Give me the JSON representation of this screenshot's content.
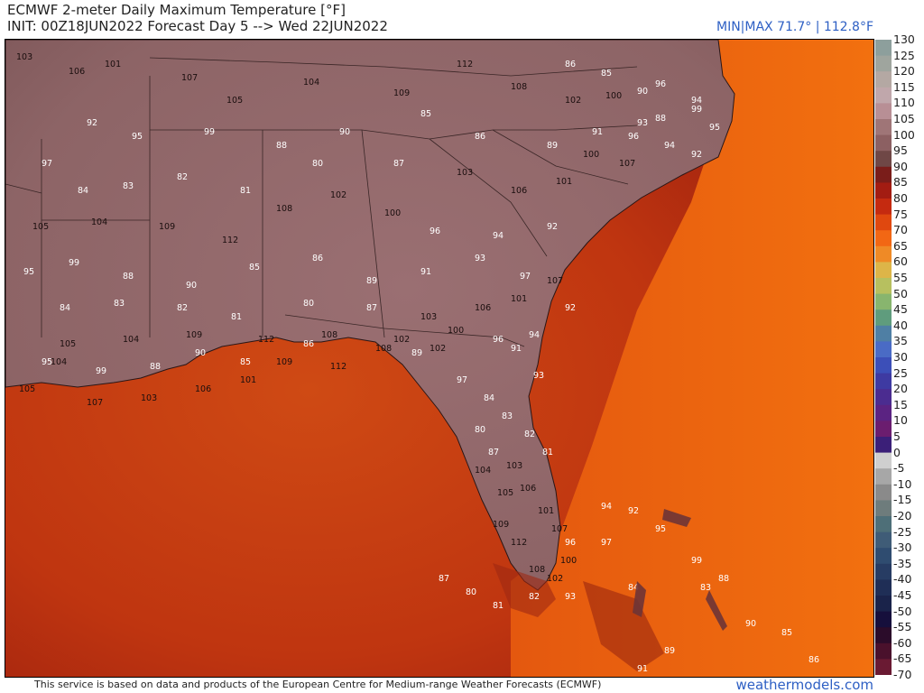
{
  "header": {
    "title": "ECMWF 2-meter Daily Maximum Temperature [°F]",
    "init_line": "INIT: 00Z18JUN2022 Forecast Day 5 --> Wed 22JUN2022",
    "minmax": "MIN|MAX 71.7° | 112.8°F"
  },
  "footer": {
    "credit": "This service is based on data and products of the European Centre for Medium-range Weather Forecasts (ECMWF)",
    "brand": "weathermodels.com"
  },
  "colorbar": {
    "labels": [
      "130",
      "125",
      "120",
      "115",
      "110",
      "105",
      "100",
      "95",
      "90",
      "85",
      "80",
      "75",
      "70",
      "65",
      "60",
      "55",
      "50",
      "45",
      "40",
      "35",
      "30",
      "25",
      "20",
      "15",
      "10",
      "5",
      "0",
      "-5",
      "-10",
      "-15",
      "-20",
      "-25",
      "-30",
      "-35",
      "-40",
      "-45",
      "-50",
      "-55",
      "-60",
      "-65",
      "-70"
    ],
    "colors": [
      "#8d9f9c",
      "#9fa59e",
      "#b4a8a3",
      "#c0a7ab",
      "#b88f95",
      "#9f7577",
      "#8c6062",
      "#6f4746",
      "#7a1d1a",
      "#a31c12",
      "#c52a10",
      "#e0480f",
      "#f26714",
      "#ef8a26",
      "#ddb548",
      "#b7c05f",
      "#88b56e",
      "#5f9c7d",
      "#4f7fa4",
      "#4a6bc5",
      "#3c4fb8",
      "#3e3aa2",
      "#4b2c90",
      "#5b2382",
      "#6b1d6f",
      "#3b1f78",
      "#cfcfcf",
      "#a7a7a7",
      "#8a8a8a",
      "#6e7c7c",
      "#4e6f78",
      "#3f5c77",
      "#2f4c70",
      "#273c63",
      "#1f2e56",
      "#1a234a",
      "#160f3c",
      "#2b0c2a",
      "#4a112c",
      "#6a1a33"
    ]
  },
  "map": {
    "temperatures": [
      {
        "v": "103",
        "t": "land"
      },
      {
        "v": "106",
        "t": "land"
      },
      {
        "v": "101",
        "t": "land"
      },
      {
        "v": "107",
        "t": "land"
      },
      {
        "v": "105",
        "t": "land"
      },
      {
        "v": "104",
        "t": "land"
      },
      {
        "v": "109",
        "t": "land"
      },
      {
        "v": "112",
        "t": "land"
      },
      {
        "v": "108",
        "t": "land"
      },
      {
        "v": "102",
        "t": "land"
      },
      {
        "v": "100",
        "t": "land"
      },
      {
        "v": "96",
        "t": "coast"
      },
      {
        "v": "94",
        "t": "coast"
      },
      {
        "v": "92",
        "t": "coast"
      },
      {
        "v": "95",
        "t": "coast"
      },
      {
        "v": "99",
        "t": "coast"
      },
      {
        "v": "88",
        "t": "coast"
      },
      {
        "v": "90",
        "t": "coast"
      },
      {
        "v": "85",
        "t": "coast"
      },
      {
        "v": "86",
        "t": "coast"
      },
      {
        "v": "89",
        "t": "coast"
      },
      {
        "v": "91",
        "t": "coast"
      },
      {
        "v": "93",
        "t": "coast"
      },
      {
        "v": "97",
        "t": "coast"
      },
      {
        "v": "84",
        "t": "coast"
      },
      {
        "v": "83",
        "t": "coast"
      },
      {
        "v": "82",
        "t": "ocean"
      },
      {
        "v": "81",
        "t": "ocean"
      },
      {
        "v": "80",
        "t": "ocean"
      },
      {
        "v": "87",
        "t": "coast"
      }
    ]
  }
}
